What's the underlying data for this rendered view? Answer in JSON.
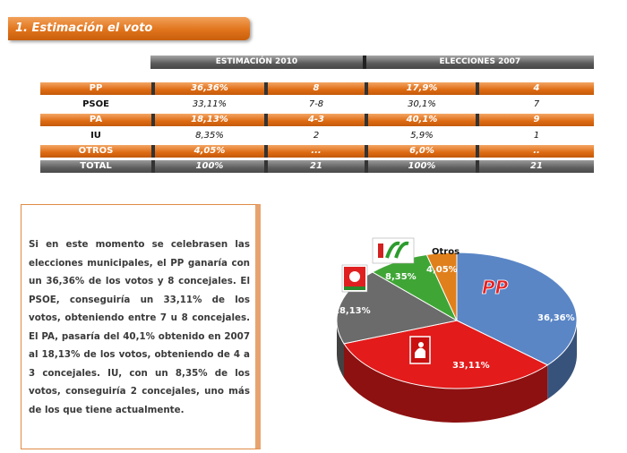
{
  "section_title": "1. Estimación el voto",
  "table": {
    "headers": [
      "ESTIMACIÓN 2010",
      "ELECCIONES 2007"
    ],
    "rows": [
      {
        "party": "PP",
        "est_pct": "36,36%",
        "est_seats": "8",
        "e2007_pct": "17,9%",
        "e2007_seats": "4"
      },
      {
        "party": "PSOE",
        "est_pct": "33,11%",
        "est_seats": "7-8",
        "e2007_pct": "30,1%",
        "e2007_seats": "7"
      },
      {
        "party": "PA",
        "est_pct": "18,13%",
        "est_seats": "4-3",
        "e2007_pct": "40,1%",
        "e2007_seats": "9"
      },
      {
        "party": "IU",
        "est_pct": "8,35%",
        "est_seats": "2",
        "e2007_pct": "5,9%",
        "e2007_seats": "1"
      },
      {
        "party": "OTROS",
        "est_pct": "4,05%",
        "est_seats": "...",
        "e2007_pct": "6,0%",
        "e2007_seats": ".."
      },
      {
        "party": "TOTAL",
        "est_pct": "100%",
        "est_seats": "21",
        "e2007_pct": "100%",
        "e2007_seats": "21"
      }
    ]
  },
  "summary_text": "Si en este momento se celebrasen las elecciones municipales, el PP ganaría con un 36,36% de los votos y 8 concejales. El PSOE, conseguiría un 33,11% de los votos, obteniendo entre 7 u 8 concejales. El PA, pasaría del 40,1% obtenido en 2007 al 18,13% de los votos, obteniendo de 4 a 3 concejales. IU, con un 8,35% de los votos, conseguiría 2 concejales, uno más de los que tiene actualmente.",
  "chart_data": {
    "type": "pie",
    "slices": [
      {
        "label": "PP",
        "value": 36.36,
        "display": "36,36%",
        "color": "#5a86c6",
        "logo_text": "PP"
      },
      {
        "label": "PSOE",
        "value": 33.11,
        "display": "33,11%",
        "color": "#e31b1b"
      },
      {
        "label": "PA",
        "value": 18.13,
        "display": "18,13%",
        "color": "#6b6b6b"
      },
      {
        "label": "IU",
        "value": 8.35,
        "display": "8,35%",
        "color": "#3fa636"
      },
      {
        "label": "Otros",
        "value": 4.05,
        "display": "4,05%",
        "color": "#e0801c"
      }
    ],
    "outside_label": "Otros"
  }
}
